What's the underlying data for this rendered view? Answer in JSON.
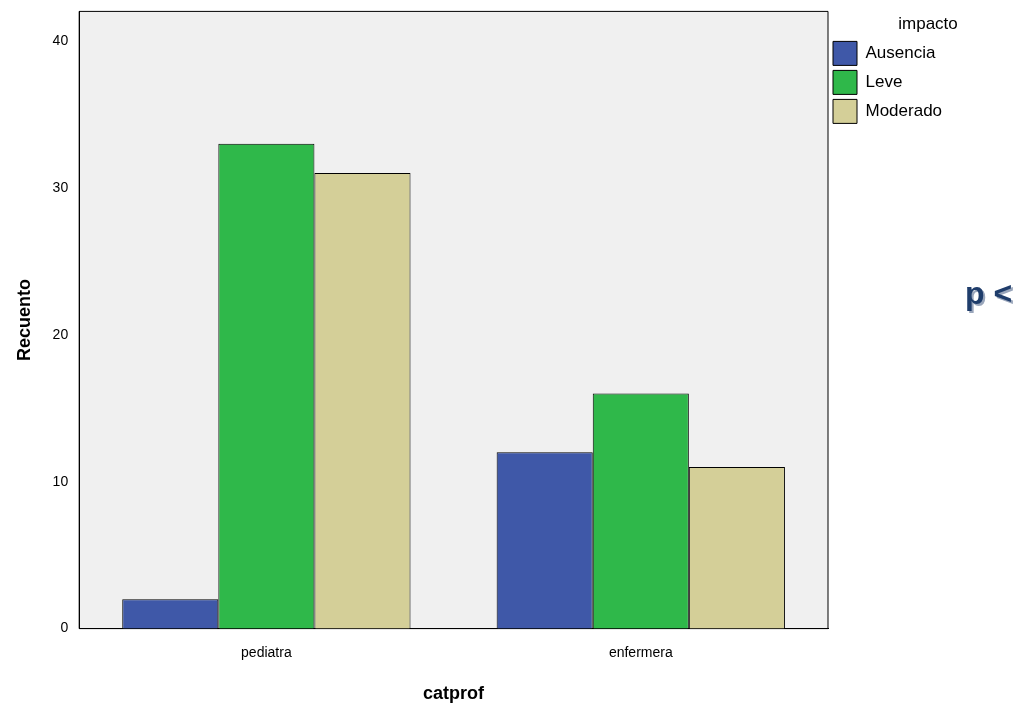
{
  "chart_data": {
    "type": "bar",
    "xlabel": "catprof",
    "ylabel": "Recuento",
    "legend_title": "impacto",
    "categories": [
      "pediatra",
      "enfermera"
    ],
    "series": [
      {
        "name": "Ausencia",
        "color": "#3f58a8",
        "values": [
          2,
          12
        ]
      },
      {
        "name": "Leve",
        "color": "#2fb84a",
        "values": [
          33,
          16
        ]
      },
      {
        "name": "Moderado",
        "color": "#d4cf98",
        "values": [
          31,
          11
        ]
      }
    ],
    "ylim": [
      0,
      42
    ],
    "yticks": [
      0,
      10,
      20,
      30,
      40
    ],
    "grid": false,
    "legend": "top right",
    "annotations": [
      "p <"
    ]
  }
}
